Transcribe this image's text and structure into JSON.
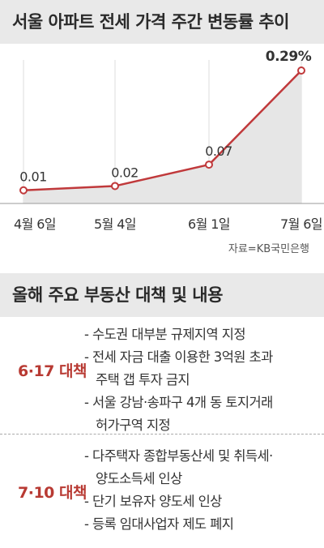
{
  "chart_data": {
    "type": "area",
    "title": "서울 아파트 전세 가격 주간 변동률 추이",
    "categories": [
      "4월 6일",
      "5월 4일",
      "6월 1일",
      "7월 6일"
    ],
    "series": [
      {
        "values": [
          0.01,
          0.02,
          0.07,
          0.29
        ],
        "labels": [
          "0.01",
          "0.02",
          "0.07",
          "0.29%"
        ]
      }
    ],
    "source": "자료=KB국민은행",
    "colors": {
      "line": "#c0393b",
      "fill": "#e6e6e6"
    }
  },
  "policies": {
    "title": "올해 주요 부동산 대책 및 내용",
    "items": [
      {
        "name": "6·17 대책",
        "lines": [
          {
            "text": "- 수도권 대부분 규제지역 지정",
            "cont": false
          },
          {
            "text": "- 전세 자금 대출 이용한 3억원 초과",
            "cont": false
          },
          {
            "text": "주택 갭 투자 금지",
            "cont": true
          },
          {
            "text": "- 서울 강남·송파구 4개 동 토지거래",
            "cont": false
          },
          {
            "text": "허가구역 지정",
            "cont": true
          }
        ]
      },
      {
        "name": "7·10 대책",
        "lines": [
          {
            "text": "- 다주택자 종합부동산세 및 취득세·",
            "cont": false
          },
          {
            "text": "양도소득세 인상",
            "cont": true
          },
          {
            "text": "- 단기 보유자 양도세 인상",
            "cont": false
          },
          {
            "text": "- 등록 임대사업자 제도 폐지",
            "cont": false
          }
        ]
      }
    ]
  }
}
